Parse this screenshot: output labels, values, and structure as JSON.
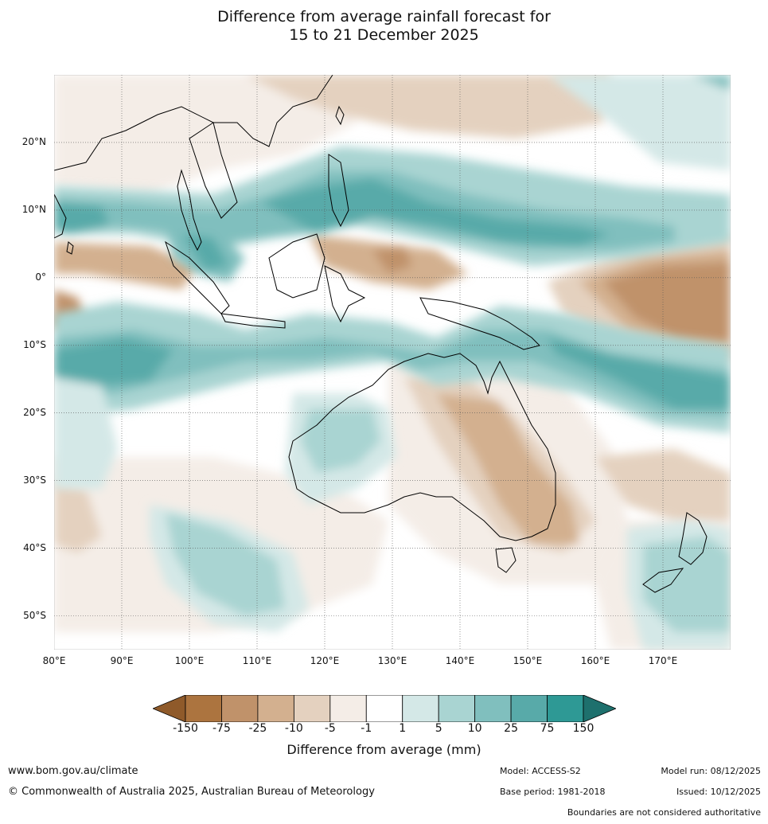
{
  "title": {
    "line1": "Difference from average rainfall forecast for",
    "line2": "15 to 21 December 2025"
  },
  "map": {
    "type": "rainfall-anomaly-map",
    "region": "Indo-Pacific and Australia",
    "lat_labels": [
      "20°N",
      "10°N",
      "0°",
      "10°S",
      "20°S",
      "30°S",
      "40°S",
      "50°S"
    ],
    "lon_labels": [
      "80°E",
      "90°E",
      "100°E",
      "110°E",
      "120°E",
      "130°E",
      "140°E",
      "150°E",
      "160°E",
      "170°E"
    ],
    "lat_range": [
      -55,
      30
    ],
    "lon_range": [
      80,
      180
    ]
  },
  "legend": {
    "title": "Difference from average (mm)",
    "tick_labels": [
      "-150",
      "-75",
      "-25",
      "-10",
      "-5",
      "-1",
      "1",
      "5",
      "10",
      "25",
      "75",
      "150"
    ],
    "colors": [
      "#8f5a2a",
      "#ac743f",
      "#c0926a",
      "#d3b08f",
      "#e4d1bf",
      "#f4ede7",
      "#ffffff",
      "#d4e8e7",
      "#a9d4d2",
      "#80bfbe",
      "#58aaa9",
      "#2e9995",
      "#1e706d"
    ]
  },
  "footer": {
    "url": "www.bom.gov.au/climate",
    "copyright": "© Commonwealth of Australia 2025, Australian Bureau of Meteorology",
    "model": "Model: ACCESS-S2",
    "base_period": "Base period: 1981-2018",
    "model_run": "Model run: 08/12/2025",
    "issued": "Issued: 10/12/2025",
    "disclaimer": "Boundaries are not considered authoritative"
  }
}
